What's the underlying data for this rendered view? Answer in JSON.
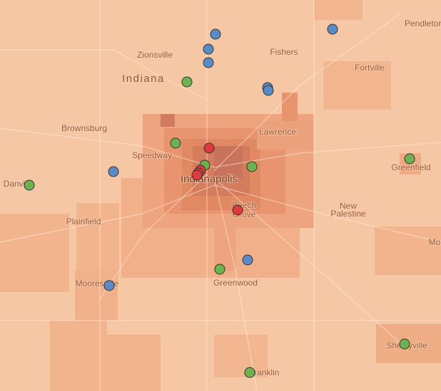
{
  "places": [
    "Pendleton",
    "Zionsville",
    "Fishers",
    "Fortville",
    "Indiana",
    "Brownsburg",
    "Lawrence",
    "Speedway",
    "Greenfield",
    "Danville",
    "Indianapolis",
    [
      "Beech",
      "Grove"
    ],
    [
      "New",
      "Palestine"
    ],
    "Plainfield",
    "Mooresville",
    "Greenwood",
    "Shelbyville",
    "Franklin",
    "Morristown"
  ]
}
